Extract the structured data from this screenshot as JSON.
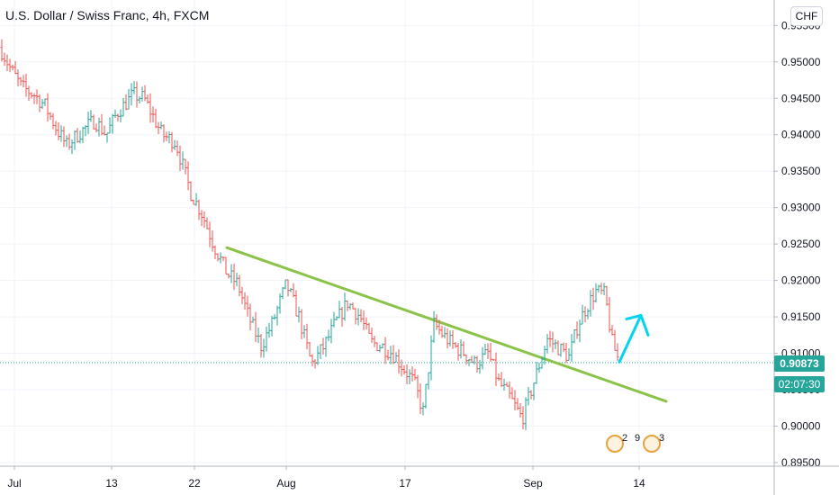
{
  "title": "U.S. Dollar / Swiss Franc, 4h, FXCM",
  "currency": "CHF",
  "current_price_label": "0.90873",
  "countdown_label": "02:07:30",
  "events": {
    "badge_a_count": "2",
    "badge_b_count": "9",
    "badge_c_count": "3"
  },
  "colors": {
    "up": "#26a69a",
    "down": "#ef5350",
    "trendline": "#8bc34a",
    "arrow": "#00d4f0",
    "grid": "#f0f3fa",
    "axis_text": "#131722",
    "price_line": "#26a69a"
  },
  "chart_data": {
    "type": "ohlc",
    "title": "U.S. Dollar / Swiss Franc, 4h, FXCM",
    "y_axis_ticks": [
      "0.95500",
      "0.95000",
      "0.94500",
      "0.94000",
      "0.93500",
      "0.93000",
      "0.92500",
      "0.92000",
      "0.91500",
      "0.91000",
      "0.90500",
      "0.90000",
      "0.89500"
    ],
    "ylim": [
      0.8945,
      0.9585
    ],
    "x_axis_ticks": [
      "Jul",
      "13",
      "22",
      "Aug",
      "17",
      "Sep",
      "14"
    ],
    "grid": true,
    "price_path": [
      {
        "t": "Jul 1",
        "close": 0.952
      },
      {
        "t": "Jul 2",
        "close": 0.949
      },
      {
        "t": "Jul 3",
        "close": 0.9465
      },
      {
        "t": "Jul 6",
        "close": 0.9455
      },
      {
        "t": "Jul 7",
        "close": 0.944
      },
      {
        "t": "Jul 8",
        "close": 0.941
      },
      {
        "t": "Jul 9",
        "close": 0.9385
      },
      {
        "t": "Jul 10",
        "close": 0.94
      },
      {
        "t": "Jul 13",
        "close": 0.942
      },
      {
        "t": "Jul 14",
        "close": 0.94
      },
      {
        "t": "Jul 15",
        "close": 0.943
      },
      {
        "t": "Jul 16",
        "close": 0.9455
      },
      {
        "t": "Jul 17",
        "close": 0.945
      },
      {
        "t": "Jul 20",
        "close": 0.94
      },
      {
        "t": "Jul 21",
        "close": 0.939
      },
      {
        "t": "Jul 22",
        "close": 0.932
      },
      {
        "t": "Jul 23",
        "close": 0.929
      },
      {
        "t": "Jul 24",
        "close": 0.925
      },
      {
        "t": "Jul 27",
        "close": 0.921
      },
      {
        "t": "Jul 28",
        "close": 0.9195
      },
      {
        "t": "Jul 29",
        "close": 0.915
      },
      {
        "t": "Jul 30",
        "close": 0.911
      },
      {
        "t": "Jul 31",
        "close": 0.914
      },
      {
        "t": "Aug 3",
        "close": 0.9195
      },
      {
        "t": "Aug 4",
        "close": 0.915
      },
      {
        "t": "Aug 5",
        "close": 0.9085
      },
      {
        "t": "Aug 6",
        "close": 0.911
      },
      {
        "t": "Aug 7",
        "close": 0.914
      },
      {
        "t": "Aug 10",
        "close": 0.917
      },
      {
        "t": "Aug 11",
        "close": 0.915
      },
      {
        "t": "Aug 12",
        "close": 0.9115
      },
      {
        "t": "Aug 13",
        "close": 0.911
      },
      {
        "t": "Aug 14",
        "close": 0.91
      },
      {
        "t": "Aug 17",
        "close": 0.906
      },
      {
        "t": "Aug 18",
        "close": 0.902
      },
      {
        "t": "Aug 19",
        "close": 0.914
      },
      {
        "t": "Aug 20",
        "close": 0.9125
      },
      {
        "t": "Aug 21",
        "close": 0.911
      },
      {
        "t": "Aug 24",
        "close": 0.91
      },
      {
        "t": "Aug 25",
        "close": 0.9085
      },
      {
        "t": "Aug 26",
        "close": 0.91
      },
      {
        "t": "Aug 27",
        "close": 0.906
      },
      {
        "t": "Aug 28",
        "close": 0.904
      },
      {
        "t": "Aug 31",
        "close": 0.901
      },
      {
        "t": "Sep 1",
        "close": 0.908
      },
      {
        "t": "Sep 2",
        "close": 0.912
      },
      {
        "t": "Sep 3",
        "close": 0.911
      },
      {
        "t": "Sep 4",
        "close": 0.9095
      },
      {
        "t": "Sep 7",
        "close": 0.914
      },
      {
        "t": "Sep 8",
        "close": 0.9165
      },
      {
        "t": "Sep 9",
        "close": 0.9185
      },
      {
        "t": "Sep 10",
        "close": 0.918
      },
      {
        "t": "Sep 11",
        "close": 0.9115
      },
      {
        "t": "Sep 11b",
        "close": 0.9087
      }
    ],
    "current_price": 0.90873,
    "trendline": {
      "start": {
        "t": "Jul 27",
        "price": 0.9245
      },
      "end": {
        "t": "Sep 18",
        "price": 0.9034
      }
    },
    "projection_arrow": {
      "start": {
        "t": "Sep 11b",
        "price": 0.9088
      },
      "end": {
        "t": "Sep 14",
        "price": 0.9152
      }
    }
  }
}
